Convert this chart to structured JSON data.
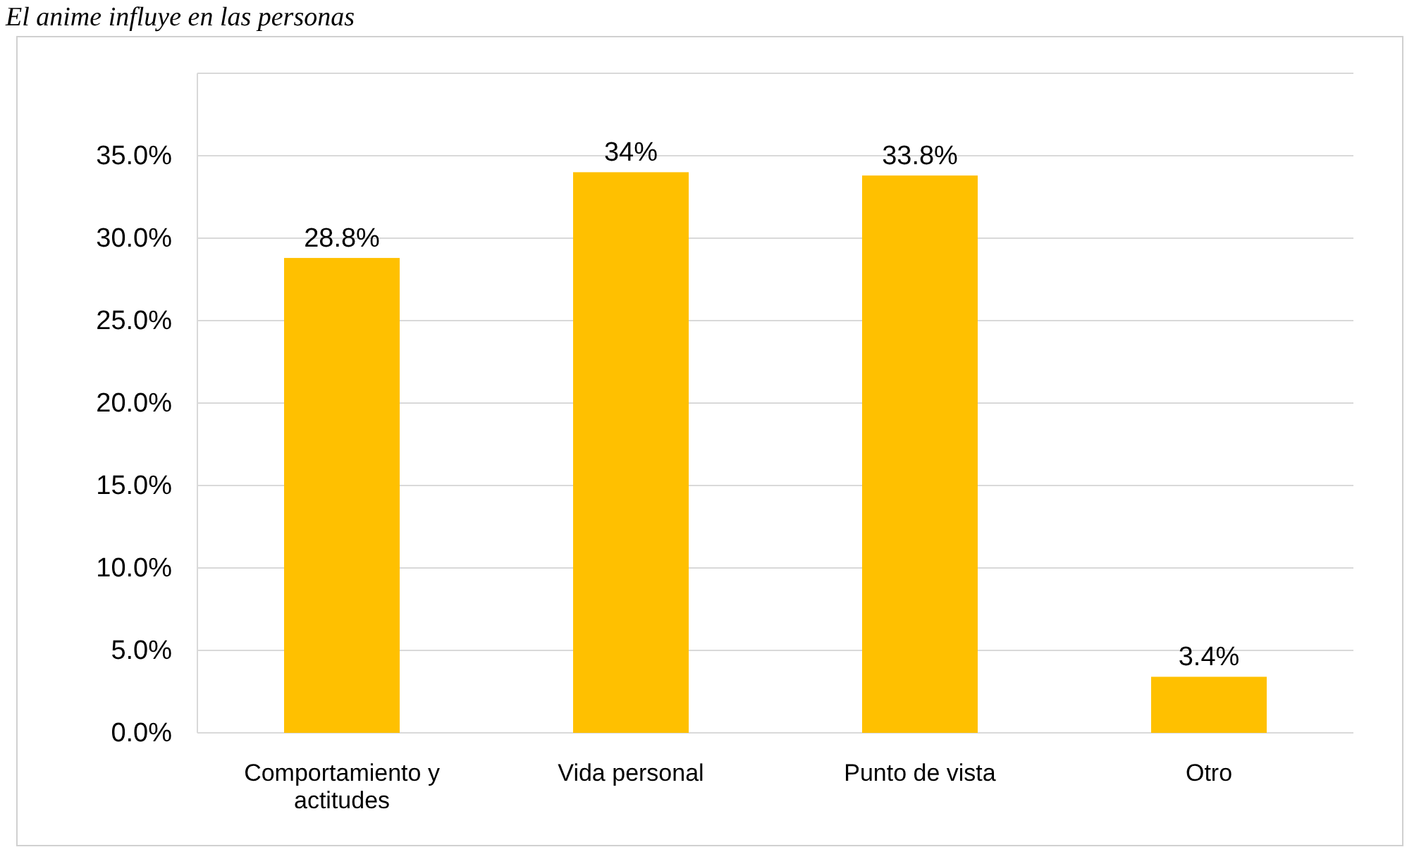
{
  "chart_data": {
    "type": "bar",
    "title": "El anime influye en las personas",
    "categories": [
      "Comportamiento y actitudes",
      "Vida personal",
      "Punto de vista",
      "Otro"
    ],
    "values": [
      28.8,
      34,
      33.8,
      3.4
    ],
    "value_labels": [
      "28.8%",
      "34%",
      "33.8%",
      "3.4%"
    ],
    "color": "#ffc000",
    "ylim": [
      0,
      40
    ],
    "yticks": [
      {
        "value": 0,
        "label": "0.0%"
      },
      {
        "value": 5,
        "label": "5.0%"
      },
      {
        "value": 10,
        "label": "10.0%"
      },
      {
        "value": 15,
        "label": "15.0%"
      },
      {
        "value": 20,
        "label": "20.0%"
      },
      {
        "value": 25,
        "label": "25.0%"
      },
      {
        "value": 30,
        "label": "30.0%"
      },
      {
        "value": 35,
        "label": "35.0%"
      },
      {
        "value": 40,
        "label": null
      }
    ],
    "grid": "y"
  }
}
